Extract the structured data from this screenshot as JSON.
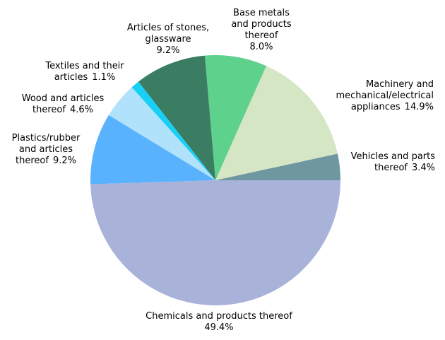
{
  "chart_data": {
    "type": "pie",
    "categories": [
      "Vehicles and parts thereof",
      "Machinery and mechanical/electrical appliances",
      "Base metals and products thereof",
      "Articles of stones, glassware",
      "Textiles and their articles",
      "Wood and articles thereof",
      "Plastics/rubber and articles thereof",
      "Chemicals and products thereof"
    ],
    "values": [
      3.4,
      14.9,
      8.0,
      9.2,
      1.1,
      4.6,
      9.2,
      49.4
    ],
    "value_labels": [
      "3.4%",
      "14.9%",
      "8.0%",
      "9.2%",
      "1.1%",
      "4.6%",
      "9.2%",
      "49.4%"
    ],
    "colors": [
      "#6e97a0",
      "#d5e6c5",
      "#5ed18c",
      "#3a7d63",
      "#18cff5",
      "#b0e2fc",
      "#58b2fd",
      "#a9b3d9"
    ]
  }
}
